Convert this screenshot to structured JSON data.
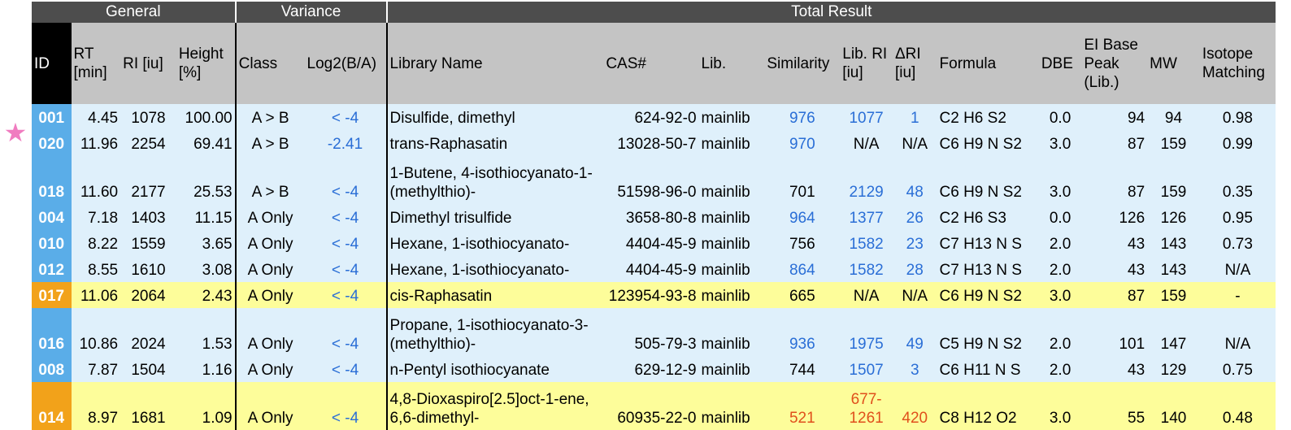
{
  "marker": "★",
  "groups": [
    "General",
    "Variance",
    "Total Result"
  ],
  "columns": [
    "ID",
    "RT [min]",
    "RI [iu]",
    "Height [%]",
    "Class",
    "Log2(B/A)",
    "Library Name",
    "CAS#",
    "Lib.",
    "Similarity",
    "Lib. RI [iu]",
    "ΔRI [iu]",
    "Formula",
    "DBE",
    "EI Base Peak (Lib.)",
    "MW",
    "Isotope Matching"
  ],
  "rows": [
    {
      "id": "001",
      "rt": "4.45",
      "ri": "1078",
      "height": "100.00",
      "class": "A > B",
      "log2": "< -4",
      "name": "Disulfide, dimethyl",
      "cas": "624-92-0",
      "lib": "mainlib",
      "sim": "976",
      "libri": "1077",
      "dri": "1",
      "formula": "C2 H6 S2",
      "dbe": "0.0",
      "base": "94",
      "mw": "94",
      "iso": "0.98"
    },
    {
      "id": "020",
      "rt": "11.96",
      "ri": "2254",
      "height": "69.41",
      "class": "A > B",
      "log2": "-2.41",
      "name": "trans-Raphasatin",
      "cas": "13028-50-7",
      "lib": "mainlib",
      "sim": "970",
      "libri": "N/A",
      "dri": "N/A",
      "formula": "C6 H9 N S2",
      "dbe": "3.0",
      "base": "87",
      "mw": "159",
      "iso": "0.99"
    },
    {
      "id": "018",
      "rt": "11.60",
      "ri": "2177",
      "height": "25.53",
      "class": "A > B",
      "log2": "< -4",
      "name": "1-Butene, 4-isothiocyanato-1-(methylthio)-",
      "cas": "51598-96-0",
      "lib": "mainlib",
      "sim": "701",
      "libri": "2129",
      "dri": "48",
      "formula": "C6 H9 N S2",
      "dbe": "3.0",
      "base": "87",
      "mw": "159",
      "iso": "0.35"
    },
    {
      "id": "004",
      "rt": "7.18",
      "ri": "1403",
      "height": "11.15",
      "class": "A Only",
      "log2": "< -4",
      "name": "Dimethyl trisulfide",
      "cas": "3658-80-8",
      "lib": "mainlib",
      "sim": "964",
      "libri": "1377",
      "dri": "26",
      "formula": "C2 H6 S3",
      "dbe": "0.0",
      "base": "126",
      "mw": "126",
      "iso": "0.95"
    },
    {
      "id": "010",
      "rt": "8.22",
      "ri": "1559",
      "height": "3.65",
      "class": "A Only",
      "log2": "< -4",
      "name": "Hexane, 1-isothiocyanato-",
      "cas": "4404-45-9",
      "lib": "mainlib",
      "sim": "756",
      "libri": "1582",
      "dri": "23",
      "formula": "C7 H13 N S",
      "dbe": "2.0",
      "base": "43",
      "mw": "143",
      "iso": "0.73"
    },
    {
      "id": "012",
      "rt": "8.55",
      "ri": "1610",
      "height": "3.08",
      "class": "A Only",
      "log2": "< -4",
      "name": "Hexane, 1-isothiocyanato-",
      "cas": "4404-45-9",
      "lib": "mainlib",
      "sim": "864",
      "libri": "1582",
      "dri": "28",
      "formula": "C7 H13 N S",
      "dbe": "2.0",
      "base": "43",
      "mw": "143",
      "iso": "N/A"
    },
    {
      "id": "017",
      "rt": "11.06",
      "ri": "2064",
      "height": "2.43",
      "class": "A Only",
      "log2": "< -4",
      "name": "cis-Raphasatin",
      "cas": "123954-93-8",
      "lib": "mainlib",
      "sim": "665",
      "libri": "N/A",
      "dri": "N/A",
      "formula": "C6 H9 N S2",
      "dbe": "3.0",
      "base": "87",
      "mw": "159",
      "iso": "-"
    },
    {
      "id": "016",
      "rt": "10.86",
      "ri": "2024",
      "height": "1.53",
      "class": "A Only",
      "log2": "< -4",
      "name": "Propane, 1-isothiocyanato-3-(methylthio)-",
      "cas": "505-79-3",
      "lib": "mainlib",
      "sim": "936",
      "libri": "1975",
      "dri": "49",
      "formula": "C5 H9 N S2",
      "dbe": "2.0",
      "base": "101",
      "mw": "147",
      "iso": "N/A"
    },
    {
      "id": "008",
      "rt": "7.87",
      "ri": "1504",
      "height": "1.16",
      "class": "A Only",
      "log2": "< -4",
      "name": "n-Pentyl isothiocyanate",
      "cas": "629-12-9",
      "lib": "mainlib",
      "sim": "744",
      "libri": "1507",
      "dri": "3",
      "formula": "C6 H11 N S",
      "dbe": "2.0",
      "base": "43",
      "mw": "129",
      "iso": "0.75"
    },
    {
      "id": "014",
      "rt": "8.97",
      "ri": "1681",
      "height": "1.09",
      "class": "A Only",
      "log2": "< -4",
      "name": "4,8-Dioxaspiro[2.5]oct-1-ene, 6,6-dimethyl-",
      "cas": "60935-22-0",
      "lib": "mainlib",
      "sim": "521",
      "libri": "677-1261",
      "dri": "420",
      "formula": "C8 H12 O2",
      "dbe": "3.0",
      "base": "55",
      "mw": "140",
      "iso": "0.48"
    }
  ]
}
